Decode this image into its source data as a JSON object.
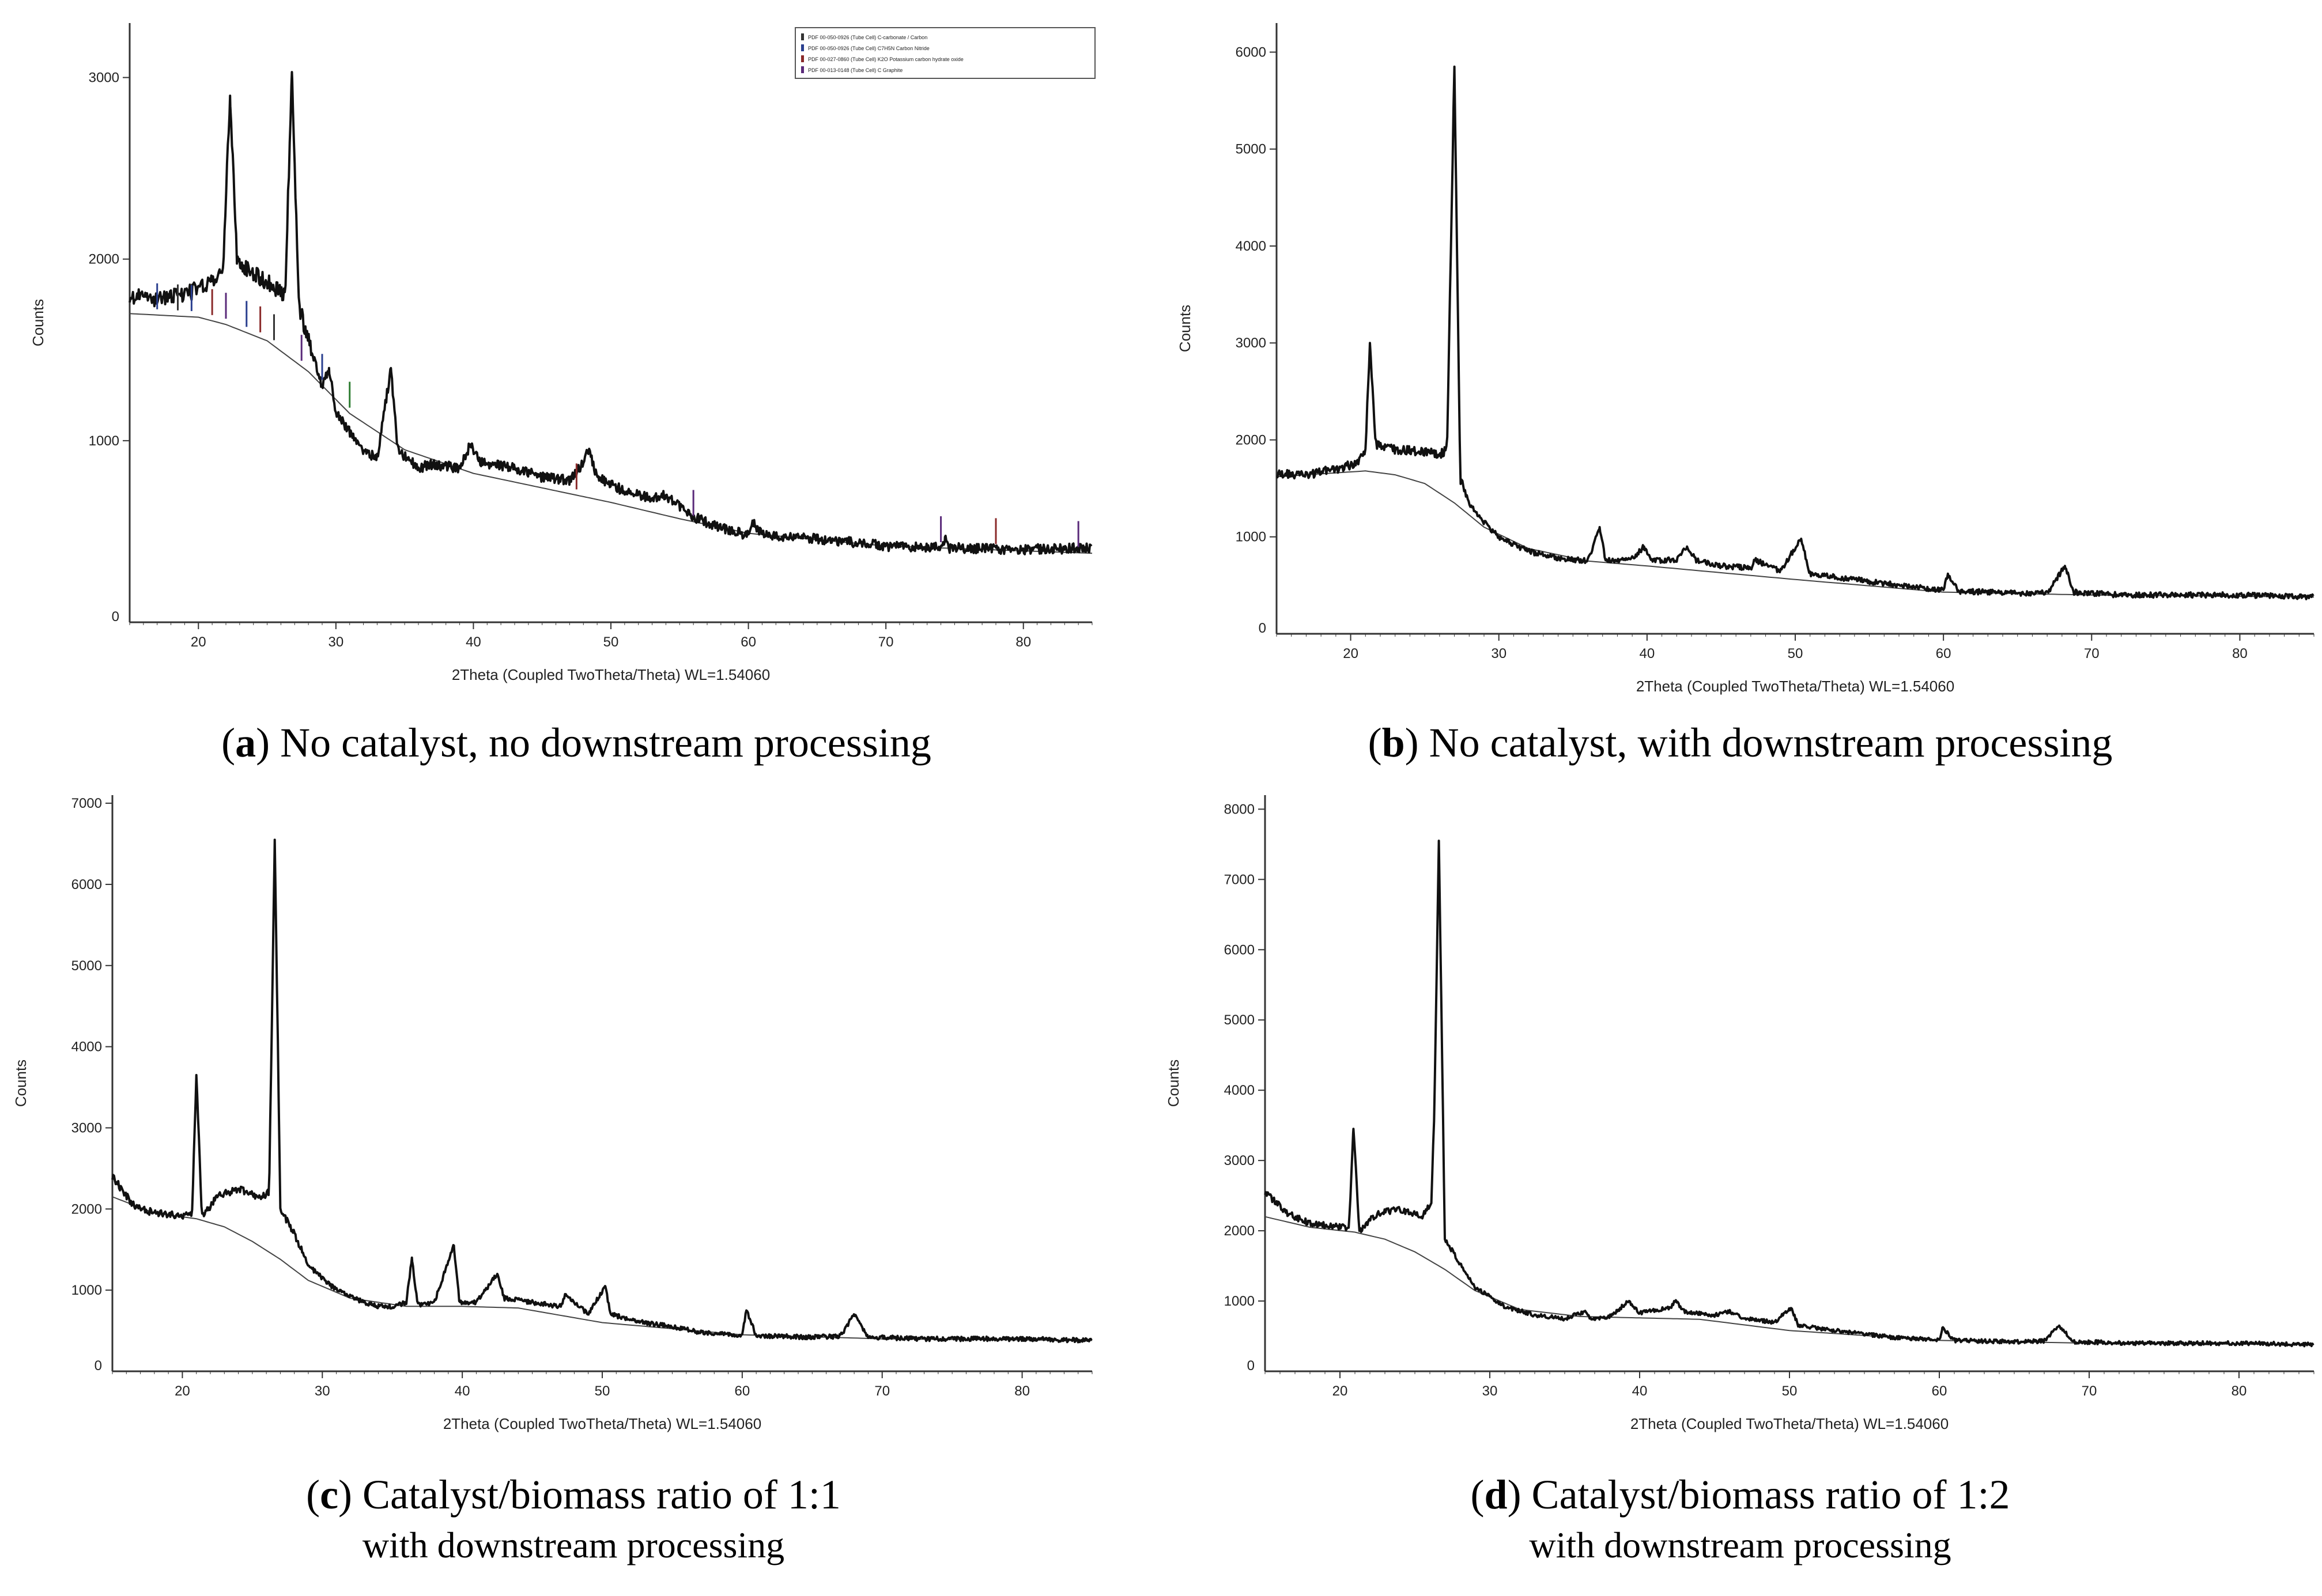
{
  "captions": [
    {
      "letter": "a",
      "line1": " No catalyst, no downstream processing",
      "line2": ""
    },
    {
      "letter": "b",
      "line1": " No catalyst, with downstream processing",
      "line2": ""
    },
    {
      "letter": "c",
      "line1": " Catalyst/biomass ratio of 1:1",
      "line2": "with downstream processing"
    },
    {
      "letter": "d",
      "line1": " Catalyst/biomass ratio of 1:2",
      "line2": "with downstream processing"
    }
  ],
  "colors": {
    "line": "#111111",
    "background": "#444444",
    "axis": "#333333"
  },
  "chart_data": [
    {
      "type": "line",
      "id": "a",
      "xlabel": "2Theta (Coupled TwoTheta/Theta) WL=1.54060",
      "ylabel": "Counts",
      "xlim": [
        15,
        85
      ],
      "ylim": [
        0,
        3300
      ],
      "xticks": [
        20,
        30,
        40,
        50,
        60,
        70,
        80
      ],
      "yticks": [
        1000,
        2000,
        3000
      ],
      "zero_label": "0",
      "legend": [
        "PDF 00-050-0926 (Tube Cell) C-carbonate / Carbon",
        "PDF 00-050-0926 (Tube Cell) C7H5N Carbon Nitride",
        "PDF 00-027-0860 (Tube Cell) K2O Potassium carbon hydrate oxide",
        "PDF 00-013-0148 (Tube Cell) C Graphite"
      ],
      "baseline": [
        [
          15,
          1700
        ],
        [
          20,
          1680
        ],
        [
          22,
          1640
        ],
        [
          25,
          1550
        ],
        [
          28,
          1380
        ],
        [
          31,
          1150
        ],
        [
          35,
          950
        ],
        [
          40,
          820
        ],
        [
          45,
          740
        ],
        [
          50,
          660
        ],
        [
          55,
          570
        ],
        [
          60,
          490
        ],
        [
          70,
          420
        ],
        [
          85,
          380
        ]
      ],
      "pattern": [
        [
          15,
          1800
        ],
        [
          17,
          1780
        ],
        [
          19,
          1800
        ],
        [
          21,
          1880
        ],
        [
          21.8,
          1950
        ],
        [
          22.3,
          2900
        ],
        [
          22.8,
          2000
        ],
        [
          24,
          1920
        ],
        [
          25.5,
          1850
        ],
        [
          26.3,
          1800
        ],
        [
          26.8,
          3030
        ],
        [
          27.3,
          1750
        ],
        [
          28,
          1550
        ],
        [
          29,
          1300
        ],
        [
          29.5,
          1400
        ],
        [
          30,
          1150
        ],
        [
          31,
          1050
        ],
        [
          32,
          950
        ],
        [
          33,
          900
        ],
        [
          34,
          1400
        ],
        [
          34.5,
          950
        ],
        [
          36,
          850
        ],
        [
          37,
          870
        ],
        [
          39,
          850
        ],
        [
          39.8,
          980
        ],
        [
          40.5,
          880
        ],
        [
          43,
          850
        ],
        [
          45,
          800
        ],
        [
          47,
          780
        ],
        [
          48,
          880
        ],
        [
          48.4,
          950
        ],
        [
          49,
          800
        ],
        [
          51,
          720
        ],
        [
          53,
          680
        ],
        [
          54,
          700
        ],
        [
          56,
          580
        ],
        [
          58,
          520
        ],
        [
          60,
          480
        ],
        [
          60.3,
          560
        ],
        [
          61,
          480
        ],
        [
          65,
          460
        ],
        [
          70,
          420
        ],
        [
          74,
          410
        ],
        [
          74.3,
          470
        ],
        [
          74.6,
          410
        ],
        [
          80,
          400
        ],
        [
          85,
          410
        ]
      ]
    },
    {
      "type": "line",
      "id": "b",
      "xlabel": "2Theta (Coupled TwoTheta/Theta) WL=1.54060",
      "ylabel": "Counts",
      "xlim": [
        15,
        85
      ],
      "ylim": [
        0,
        6300
      ],
      "xticks": [
        20,
        30,
        40,
        50,
        60,
        70,
        80
      ],
      "yticks": [
        1000,
        2000,
        3000,
        4000,
        5000,
        6000
      ],
      "zero_label": "0",
      "baseline": [
        [
          15,
          1620
        ],
        [
          18,
          1650
        ],
        [
          21,
          1680
        ],
        [
          23,
          1640
        ],
        [
          25,
          1550
        ],
        [
          27,
          1350
        ],
        [
          29,
          1100
        ],
        [
          32,
          880
        ],
        [
          36,
          750
        ],
        [
          40,
          700
        ],
        [
          50,
          560
        ],
        [
          60,
          430
        ],
        [
          70,
          400
        ],
        [
          85,
          380
        ]
      ],
      "pattern": [
        [
          15,
          1650
        ],
        [
          17,
          1640
        ],
        [
          19,
          1700
        ],
        [
          20.5,
          1760
        ],
        [
          21,
          1900
        ],
        [
          21.3,
          3000
        ],
        [
          21.7,
          1950
        ],
        [
          23,
          1900
        ],
        [
          25,
          1880
        ],
        [
          26,
          1850
        ],
        [
          26.5,
          1900
        ],
        [
          27.0,
          5850
        ],
        [
          27.4,
          1600
        ],
        [
          28,
          1350
        ],
        [
          29,
          1150
        ],
        [
          30,
          1000
        ],
        [
          32,
          850
        ],
        [
          34,
          780
        ],
        [
          36,
          750
        ],
        [
          36.8,
          1100
        ],
        [
          37.2,
          750
        ],
        [
          39,
          780
        ],
        [
          39.8,
          900
        ],
        [
          40.3,
          760
        ],
        [
          42,
          760
        ],
        [
          42.7,
          900
        ],
        [
          43.3,
          760
        ],
        [
          45,
          700
        ],
        [
          47,
          680
        ],
        [
          47.3,
          760
        ],
        [
          49,
          650
        ],
        [
          50.4,
          980
        ],
        [
          51,
          620
        ],
        [
          53,
          580
        ],
        [
          55,
          540
        ],
        [
          57,
          500
        ],
        [
          60,
          450
        ],
        [
          60.3,
          620
        ],
        [
          61,
          440
        ],
        [
          65,
          420
        ],
        [
          67,
          420
        ],
        [
          68.2,
          700
        ],
        [
          68.8,
          430
        ],
        [
          72,
          400
        ],
        [
          80,
          400
        ],
        [
          85,
          380
        ]
      ]
    },
    {
      "type": "line",
      "id": "c",
      "xlabel": "2Theta (Coupled TwoTheta/Theta) WL=1.54060",
      "ylabel": "Counts",
      "xlim": [
        15,
        85
      ],
      "ylim": [
        0,
        7100
      ],
      "xticks": [
        20,
        30,
        40,
        50,
        60,
        70,
        80
      ],
      "yticks": [
        1000,
        2000,
        3000,
        4000,
        5000,
        6000,
        7000
      ],
      "zero_label": "0",
      "baseline": [
        [
          15,
          2150
        ],
        [
          18,
          1950
        ],
        [
          21,
          1880
        ],
        [
          23,
          1780
        ],
        [
          25,
          1600
        ],
        [
          27,
          1380
        ],
        [
          29,
          1120
        ],
        [
          32,
          900
        ],
        [
          36,
          800
        ],
        [
          40,
          800
        ],
        [
          44,
          780
        ],
        [
          50,
          600
        ],
        [
          60,
          450
        ],
        [
          70,
          400
        ],
        [
          85,
          380
        ]
      ],
      "pattern": [
        [
          15,
          2400
        ],
        [
          16.5,
          2050
        ],
        [
          18,
          1950
        ],
        [
          20,
          1920
        ],
        [
          20.7,
          1950
        ],
        [
          21.0,
          3650
        ],
        [
          21.4,
          1900
        ],
        [
          22.5,
          2150
        ],
        [
          24,
          2250
        ],
        [
          25.5,
          2150
        ],
        [
          26.2,
          2200
        ],
        [
          26.6,
          6550
        ],
        [
          27.0,
          2000
        ],
        [
          28,
          1700
        ],
        [
          29,
          1300
        ],
        [
          31,
          1000
        ],
        [
          33,
          850
        ],
        [
          34,
          800
        ],
        [
          35,
          800
        ],
        [
          36,
          850
        ],
        [
          36.4,
          1400
        ],
        [
          36.8,
          820
        ],
        [
          38,
          850
        ],
        [
          39.4,
          1550
        ],
        [
          39.8,
          850
        ],
        [
          41,
          850
        ],
        [
          42.5,
          1200
        ],
        [
          43,
          900
        ],
        [
          45,
          850
        ],
        [
          47,
          800
        ],
        [
          47.4,
          950
        ],
        [
          49,
          700
        ],
        [
          50.2,
          1050
        ],
        [
          50.6,
          700
        ],
        [
          53,
          600
        ],
        [
          55,
          550
        ],
        [
          57,
          480
        ],
        [
          60,
          440
        ],
        [
          60.3,
          750
        ],
        [
          61,
          440
        ],
        [
          65,
          420
        ],
        [
          67,
          430
        ],
        [
          68,
          700
        ],
        [
          69,
          420
        ],
        [
          73,
          400
        ],
        [
          80,
          400
        ],
        [
          85,
          380
        ]
      ]
    },
    {
      "type": "line",
      "id": "d",
      "xlabel": "2Theta (Coupled TwoTheta/Theta) WL=1.54060",
      "ylabel": "Counts",
      "xlim": [
        15,
        85
      ],
      "ylim": [
        0,
        8200
      ],
      "xticks": [
        20,
        30,
        40,
        50,
        60,
        70,
        80
      ],
      "yticks": [
        1000,
        2000,
        3000,
        4000,
        5000,
        6000,
        7000,
        8000
      ],
      "zero_label": "0",
      "baseline": [
        [
          15,
          2200
        ],
        [
          18,
          2050
        ],
        [
          21,
          1980
        ],
        [
          23,
          1880
        ],
        [
          25,
          1700
        ],
        [
          27,
          1450
        ],
        [
          29,
          1150
        ],
        [
          32,
          880
        ],
        [
          36,
          780
        ],
        [
          40,
          760
        ],
        [
          44,
          740
        ],
        [
          50,
          580
        ],
        [
          60,
          440
        ],
        [
          70,
          400
        ],
        [
          85,
          380
        ]
      ],
      "pattern": [
        [
          15,
          2550
        ],
        [
          16.5,
          2250
        ],
        [
          18,
          2100
        ],
        [
          20,
          2050
        ],
        [
          20.6,
          2050
        ],
        [
          20.9,
          3450
        ],
        [
          21.3,
          2000
        ],
        [
          22.5,
          2250
        ],
        [
          24,
          2300
        ],
        [
          25.5,
          2200
        ],
        [
          26.1,
          2400
        ],
        [
          26.3,
          3700
        ],
        [
          26.6,
          7550
        ],
        [
          27.0,
          1900
        ],
        [
          28,
          1550
        ],
        [
          29,
          1200
        ],
        [
          31,
          920
        ],
        [
          33,
          800
        ],
        [
          35,
          750
        ],
        [
          36.3,
          850
        ],
        [
          36.8,
          750
        ],
        [
          38,
          780
        ],
        [
          39.3,
          1000
        ],
        [
          40,
          830
        ],
        [
          42,
          900
        ],
        [
          42.4,
          1000
        ],
        [
          43,
          850
        ],
        [
          45,
          800
        ],
        [
          46,
          850
        ],
        [
          47,
          750
        ],
        [
          49,
          700
        ],
        [
          50.1,
          900
        ],
        [
          50.6,
          650
        ],
        [
          53,
          580
        ],
        [
          55,
          530
        ],
        [
          57,
          480
        ],
        [
          60,
          450
        ],
        [
          60.2,
          620
        ],
        [
          61,
          440
        ],
        [
          65,
          420
        ],
        [
          67,
          430
        ],
        [
          68,
          650
        ],
        [
          69,
          420
        ],
        [
          73,
          400
        ],
        [
          80,
          400
        ],
        [
          85,
          380
        ]
      ]
    }
  ]
}
